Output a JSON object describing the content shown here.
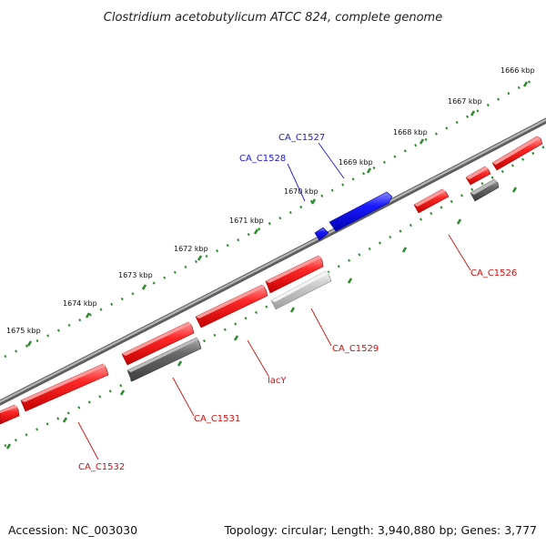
{
  "title": "Clostridium acetobutylicum ATCC 824, complete genome",
  "footer": {
    "accession": "Accession: NC_003030",
    "summary": "Topology: circular; Length: 3,940,880 bp; Genes: 3,777"
  },
  "colors": {
    "backbone": "#8a8a8a",
    "tick_ring": "#2e8b2e",
    "forward_gene": "#1010e0",
    "reverse_gene": "#ee1111",
    "other_gene_dark": "#6a6a6a",
    "other_gene_light": "#c0c0c0",
    "forward_label": "#1a1acc",
    "reverse_label": "#cc1111"
  },
  "scale_labels": [
    "1666 kbp",
    "1667 kbp",
    "1668 kbp",
    "1669 kbp",
    "1670 kbp",
    "1671 kbp",
    "1672 kbp",
    "1673 kbp",
    "1674 kbp",
    "1675 kbp"
  ],
  "gene_labels": [
    {
      "name": "CA_C1527",
      "strand": "forward"
    },
    {
      "name": "CA_C1528",
      "strand": "forward"
    },
    {
      "name": "CA_C1526",
      "strand": "reverse"
    },
    {
      "name": "CA_C1529",
      "strand": "reverse"
    },
    {
      "name": "lacY",
      "strand": "reverse"
    },
    {
      "name": "CA_C1531",
      "strand": "reverse"
    },
    {
      "name": "CA_C1532",
      "strand": "reverse"
    }
  ]
}
